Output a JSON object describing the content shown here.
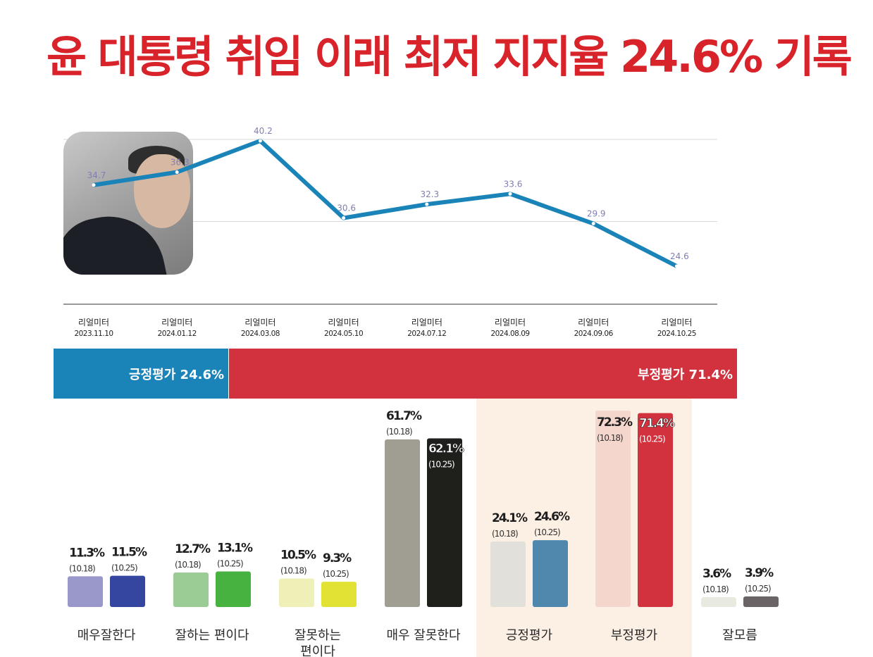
{
  "headline": "윤 대통령 취임 이래 최저 지지율 24.6% 기록",
  "summary_bar": {
    "positive_label": "긍정평가 24.6%",
    "negative_label": "부정평가 71.4%",
    "positive_value": 24.6,
    "negative_value": 71.4,
    "positive_color": "#1a83b8",
    "negative_color": "#d1323e"
  },
  "chart_data": [
    {
      "type": "line",
      "x": [
        "리얼미터\n2023.11.10",
        "리얼미터\n2024.01.12",
        "리얼미터\n2024.03.08",
        "리얼미터\n2024.05.10",
        "리얼미터\n2024.07.12",
        "리얼미터\n2024.08.09",
        "리얼미터\n2024.09.06",
        "리얼미터\n2024.10.25"
      ],
      "x_source": [
        "리얼미터",
        "리얼미터",
        "리얼미터",
        "리얼미터",
        "리얼미터",
        "리얼미터",
        "리얼미터",
        "리얼미터"
      ],
      "x_dates": [
        "2023.11.10",
        "2024.01.12",
        "2024.03.08",
        "2024.05.10",
        "2024.07.12",
        "2024.08.09",
        "2024.09.06",
        "2024.10.25"
      ],
      "values": [
        34.7,
        36.3,
        40.2,
        30.6,
        32.3,
        33.6,
        29.9,
        24.6
      ],
      "value_labels": [
        "34.7",
        "36.3",
        "40.2",
        "30.6",
        "32.3",
        "33.6",
        "29.9",
        "24.6"
      ],
      "ylim": [
        20,
        42
      ],
      "line_color": "#1a83b8",
      "grid": true
    },
    {
      "type": "bar",
      "categories": [
        "매우잘한다",
        "잘하는 편이다",
        "잘못하는 편이다",
        "매우 잘못한다",
        "긍정평가",
        "부정평가",
        "잘모름"
      ],
      "category_lines": [
        [
          "매우잘한다"
        ],
        [
          "잘하는 편이다"
        ],
        [
          "잘못하는",
          "편이다"
        ],
        [
          "매우 잘못한다"
        ],
        [
          "긍정평가"
        ],
        [
          "부정평가"
        ],
        [
          "잘모름"
        ]
      ],
      "series": [
        {
          "name": "(10.18)",
          "values": [
            11.3,
            12.7,
            10.5,
            61.7,
            24.1,
            72.3,
            3.6
          ],
          "value_labels": [
            "11.3%",
            "12.7%",
            "10.5%",
            "61.7%",
            "24.1%",
            "72.3%",
            "3.6%"
          ],
          "colors": [
            "#9a98cb",
            "#9ccc96",
            "#eff0b8",
            "#a09e92",
            "#e2e0da",
            "#f5d6cd",
            "#e8e9df"
          ]
        },
        {
          "name": "(10.25)",
          "values": [
            11.5,
            13.1,
            9.3,
            62.1,
            24.6,
            71.4,
            3.9
          ],
          "value_labels": [
            "11.5%",
            "13.1%",
            "9.3%",
            "62.1%",
            "24.6%",
            "71.4%",
            "3.9%"
          ],
          "colors": [
            "#34469f",
            "#48b240",
            "#e1e233",
            "#1f1f1c",
            "#4f87ad",
            "#d1323e",
            "#6b6466"
          ]
        }
      ],
      "ylim": [
        0,
        80
      ],
      "highlight_categories": [
        "긍정평가",
        "부정평가"
      ],
      "highlight_color": "#fcefe4"
    }
  ]
}
